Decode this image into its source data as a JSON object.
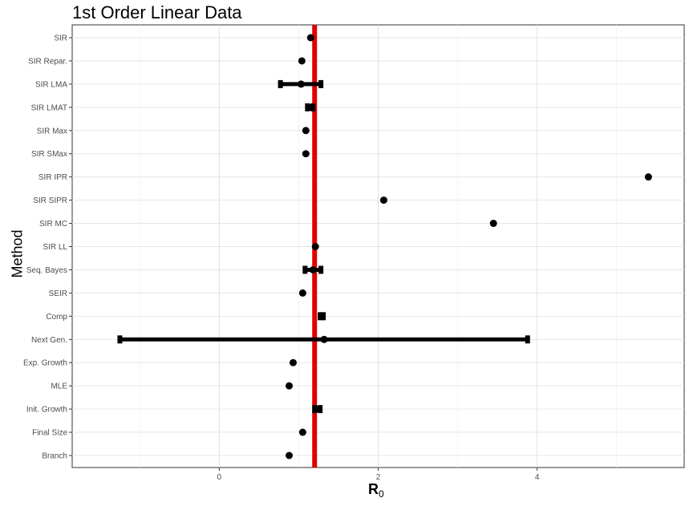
{
  "chart_data": {
    "type": "scatter",
    "title": "1st Order Linear Data",
    "xlabel_main": "R",
    "xlabel_sub": "0",
    "ylabel": "Method",
    "xlim": [
      -1.85,
      5.85
    ],
    "x_ticks": [
      0,
      2,
      4
    ],
    "reference_line": {
      "x": 1.2,
      "color": "#e00000"
    },
    "grid": true,
    "categories": [
      "SIR",
      "SIR Repar.",
      "SIR LMA",
      "SIR LMAT",
      "SIR Max",
      "SIR SMax",
      "SIR IPR",
      "SIR SIPR",
      "SIR MC",
      "SIR LL",
      "Seq. Bayes",
      "SEIR",
      "Comp",
      "Next Gen.",
      "Exp. Growth",
      "MLE",
      "Init. Growth",
      "Final Size",
      "Branch"
    ],
    "points": [
      {
        "method": "SIR",
        "estimate": 1.15
      },
      {
        "method": "SIR Repar.",
        "estimate": 1.04
      },
      {
        "method": "SIR LMA",
        "estimate": 1.03,
        "lower": 0.77,
        "upper": 1.28
      },
      {
        "method": "SIR LMAT",
        "estimate": 1.16,
        "lower": 1.11,
        "upper": 1.18
      },
      {
        "method": "SIR Max",
        "estimate": 1.09
      },
      {
        "method": "SIR SMax",
        "estimate": 1.09
      },
      {
        "method": "SIR IPR",
        "estimate": 5.4
      },
      {
        "method": "SIR SIPR",
        "estimate": 2.07
      },
      {
        "method": "SIR MC",
        "estimate": 3.45
      },
      {
        "method": "SIR LL",
        "estimate": 1.21
      },
      {
        "method": "Seq. Bayes",
        "estimate": 1.18,
        "lower": 1.08,
        "upper": 1.28
      },
      {
        "method": "SEIR",
        "estimate": 1.05
      },
      {
        "method": "Comp",
        "estimate": 1.29,
        "lower": 1.27,
        "upper": 1.31
      },
      {
        "method": "Next Gen.",
        "estimate": 1.32,
        "lower": -1.25,
        "upper": 3.88
      },
      {
        "method": "Exp. Growth",
        "estimate": 0.93
      },
      {
        "method": "MLE",
        "estimate": 0.88
      },
      {
        "method": "Init. Growth",
        "estimate": 1.22,
        "lower": 1.2,
        "upper": 1.27
      },
      {
        "method": "Final Size",
        "estimate": 1.05
      },
      {
        "method": "Branch",
        "estimate": 0.88
      }
    ]
  }
}
